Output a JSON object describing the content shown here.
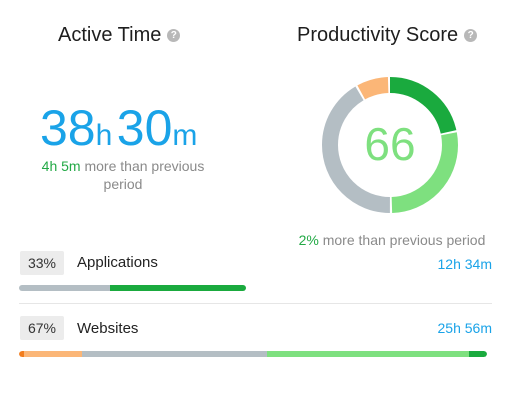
{
  "active_time": {
    "title": "Active Time",
    "help_glyph": "?",
    "hours": "38",
    "hours_unit": "h",
    "minutes": "30",
    "minutes_unit": "m",
    "delta_value": "4h 5m",
    "delta_text_line1": "more than previous",
    "delta_text_line2": "period"
  },
  "productivity": {
    "title": "Productivity Score",
    "help_glyph": "?",
    "score": "66",
    "delta_value": "2%",
    "delta_text": "more than previous period",
    "donut_segments": [
      {
        "name": "productive",
        "fraction": 0.22,
        "color": "#1aaa3e"
      },
      {
        "name": "somewhat-productive",
        "fraction": 0.28,
        "color": "#7ee07f"
      },
      {
        "name": "neutral",
        "fraction": 0.42,
        "color": "#b4bec4"
      },
      {
        "name": "unproductive",
        "fraction": 0.08,
        "color": "#fbb677"
      }
    ]
  },
  "usage_rows": [
    {
      "percent": "33%",
      "label": "Applications",
      "time": "12h 34m",
      "bar_fraction": 0.33,
      "segments": [
        {
          "fraction": 0.4,
          "color": "#b4bec4"
        },
        {
          "fraction": 0.6,
          "color": "#1aaa3e"
        }
      ]
    },
    {
      "percent": "67%",
      "label": "Websites",
      "time": "25h 56m",
      "bar_fraction": 1.0,
      "segments": [
        {
          "fraction": 0.011,
          "color": "#f27d1e"
        },
        {
          "fraction": 0.123,
          "color": "#fbb677"
        },
        {
          "fraction": 0.397,
          "color": "#b4bec4"
        },
        {
          "fraction": 0.43,
          "color": "#7ee07f"
        },
        {
          "fraction": 0.039,
          "color": "#1aaa3e"
        }
      ]
    }
  ]
}
